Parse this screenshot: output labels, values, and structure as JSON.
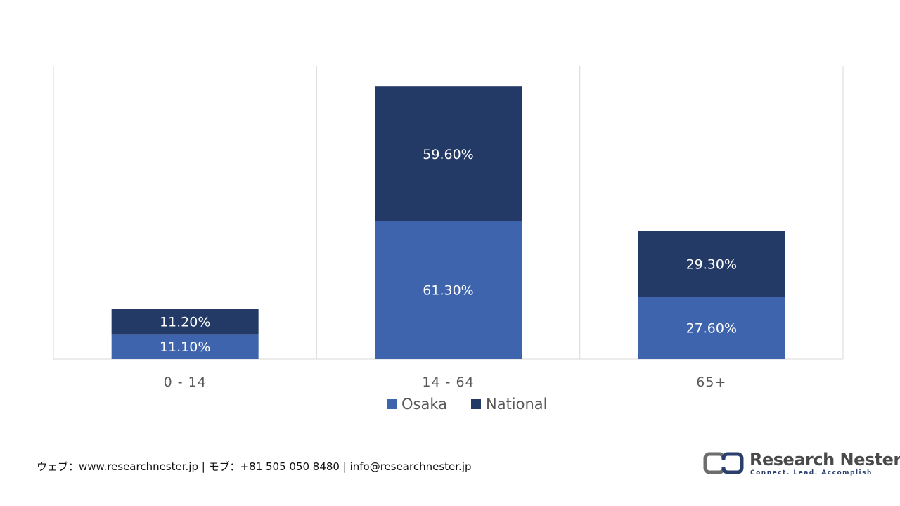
{
  "chart_data": {
    "type": "bar",
    "stacked": true,
    "categories": [
      "0 - 14",
      "14 - 64",
      "65+"
    ],
    "series": [
      {
        "name": "Osaka",
        "values": [
          11.1,
          61.3,
          27.6
        ],
        "labels": [
          "11.10%",
          "61.30%",
          "27.60%"
        ],
        "color": "#3e64ad"
      },
      {
        "name": "National",
        "values": [
          11.2,
          59.6,
          29.3
        ],
        "labels": [
          "11.20%",
          "59.60%",
          "29.30%"
        ],
        "color": "#233a66"
      }
    ],
    "ylim": [
      0,
      130
    ],
    "grid": "vertical-category-dividers",
    "legend_position": "bottom"
  },
  "footer": {
    "contact": "ウェブ：www.researchnester.jp | モブ：+81 505 050 8480 | info@researchnester.jp"
  },
  "logo": {
    "name": "Research Nester",
    "tagline": "Connect. Lead. Accomplish"
  }
}
